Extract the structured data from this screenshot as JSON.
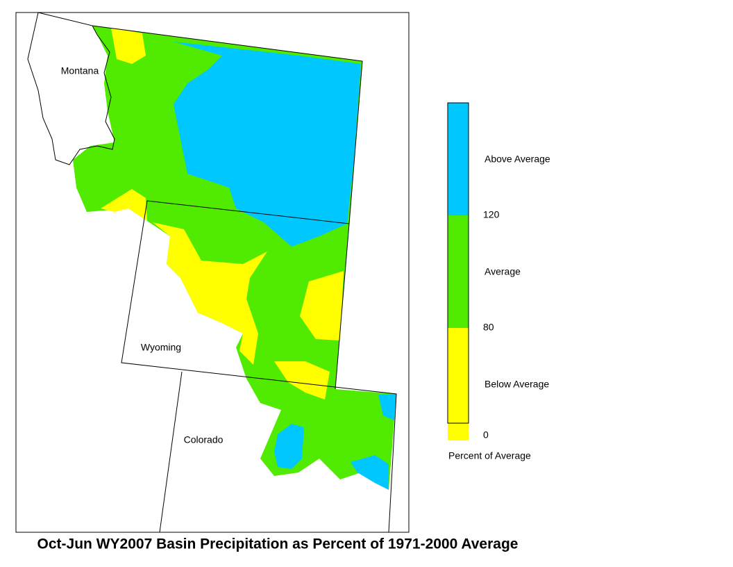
{
  "map": {
    "title": "Oct-Jun WY2007 Basin Precipitation as Percent of 1971-2000 Average",
    "states": [
      "Montana",
      "Wyoming",
      "Colorado"
    ],
    "legend": {
      "bands": [
        {
          "label": "Above Average",
          "color": "#00c8ff"
        },
        {
          "label": "Average",
          "color": "#50eb00"
        },
        {
          "label": "Below Average",
          "color": "#ffff00"
        }
      ],
      "ticks": [
        120,
        80,
        0
      ],
      "caption": "Percent of Average"
    }
  }
}
